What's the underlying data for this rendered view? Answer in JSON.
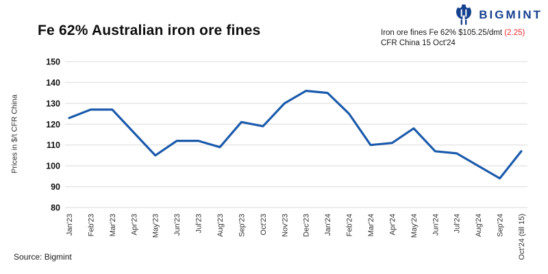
{
  "header": {
    "title": "Fe 62% Australian iron ore fines",
    "logo_text": "BIGMINT",
    "quote_line1": "Iron ore fines Fe 62% $105.25/dmt",
    "quote_change": "(2.25)",
    "quote_line2": "CFR China 15 Oct'24"
  },
  "footer": {
    "source": "Source: Bigmint"
  },
  "colors": {
    "logo_navy": "#15418F",
    "change_red": "#EE2B2B"
  },
  "chart_data": {
    "type": "line",
    "title": "Fe 62% Australian iron ore fines",
    "xlabel": "",
    "ylabel": "Prices in $/t CFR China",
    "ylim": [
      80,
      150
    ],
    "ytick_interval": 10,
    "grid": "horizontal",
    "legend_position": "none",
    "line_color": "#1B5AAB",
    "grid_color": "#d9d9d9",
    "categories": [
      "Jan'23",
      "Feb'23",
      "Mar'23",
      "Apr'23",
      "May'23",
      "Jun'23",
      "Jul'23",
      "Aug'23",
      "Sep'23",
      "Oct'23",
      "Nov'23",
      "Dec'23",
      "Jan'24",
      "Feb'24",
      "Mar'24",
      "Apr'24",
      "May'24",
      "Jun'24",
      "Jul'24",
      "Aug'24",
      "Sep'24",
      "Oct'24 (till 15)"
    ],
    "series": [
      {
        "name": "Iron ore fines Fe 62% CFR China",
        "values": [
          123,
          127,
          127,
          116,
          105,
          112,
          112,
          109,
          121,
          119,
          130,
          136,
          135,
          125,
          110,
          111,
          118,
          107,
          106,
          100,
          94,
          107
        ]
      }
    ]
  }
}
